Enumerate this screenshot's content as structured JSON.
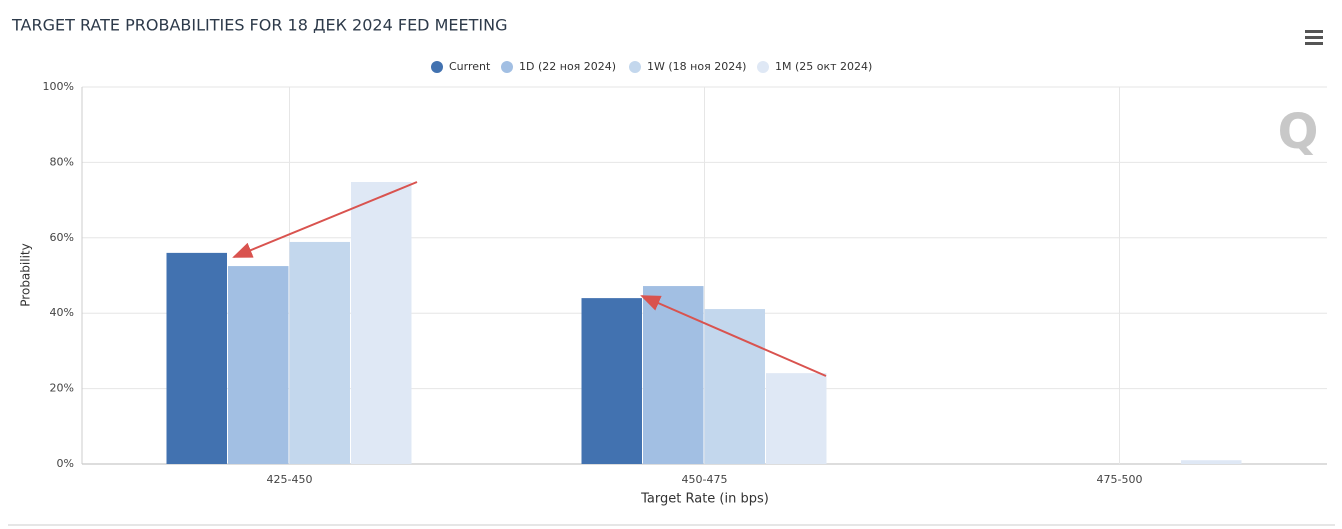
{
  "chart_data": {
    "type": "bar",
    "title": "TARGET RATE PROBABILITIES FOR 18 ДЕК 2024 FED MEETING",
    "x_label": "Target Rate (in bps)",
    "y_label": "Probability",
    "categories": [
      "425-450",
      "450-475",
      "475-500"
    ],
    "series": [
      {
        "name": "Current",
        "color": "#4272b0",
        "values": [
          56.0,
          44.0,
          0
        ]
      },
      {
        "name": "1D (22 ноя 2024)",
        "color": "#a2bfe3",
        "values": [
          52.5,
          47.2,
          0
        ]
      },
      {
        "name": "1W (18 ноя 2024)",
        "color": "#c3d7ed",
        "values": [
          58.9,
          41.1,
          0
        ]
      },
      {
        "name": "1M (25 окт 2024)",
        "color": "#dfe8f5",
        "values": [
          74.8,
          24.1,
          1.0
        ]
      }
    ],
    "ylim": [
      0,
      100
    ],
    "yticks": [
      {
        "value": 0,
        "label": "0%"
      },
      {
        "value": 20,
        "label": "20%"
      },
      {
        "value": 40,
        "label": "40%"
      },
      {
        "value": 60,
        "label": "60%"
      },
      {
        "value": 80,
        "label": "80%"
      },
      {
        "value": 100,
        "label": "100%"
      }
    ],
    "grid": true
  }
}
